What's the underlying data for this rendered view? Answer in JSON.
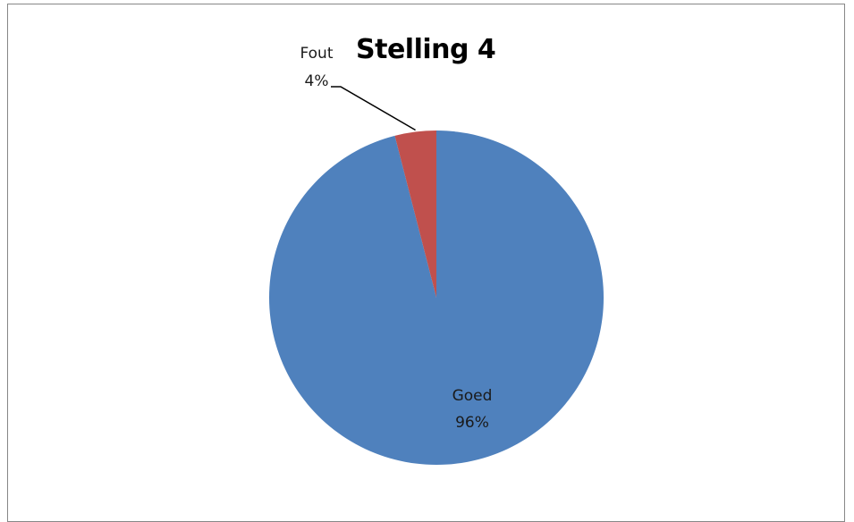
{
  "chart_data": {
    "type": "pie",
    "title": "Stelling 4",
    "categories": [
      "Goed",
      "Fout"
    ],
    "values": [
      96,
      4
    ],
    "value_labels": [
      "96%",
      "4%"
    ],
    "colors": [
      "#4F81BD",
      "#C0504D"
    ],
    "start_angle": "top",
    "direction": "clockwise",
    "legend": "none"
  }
}
